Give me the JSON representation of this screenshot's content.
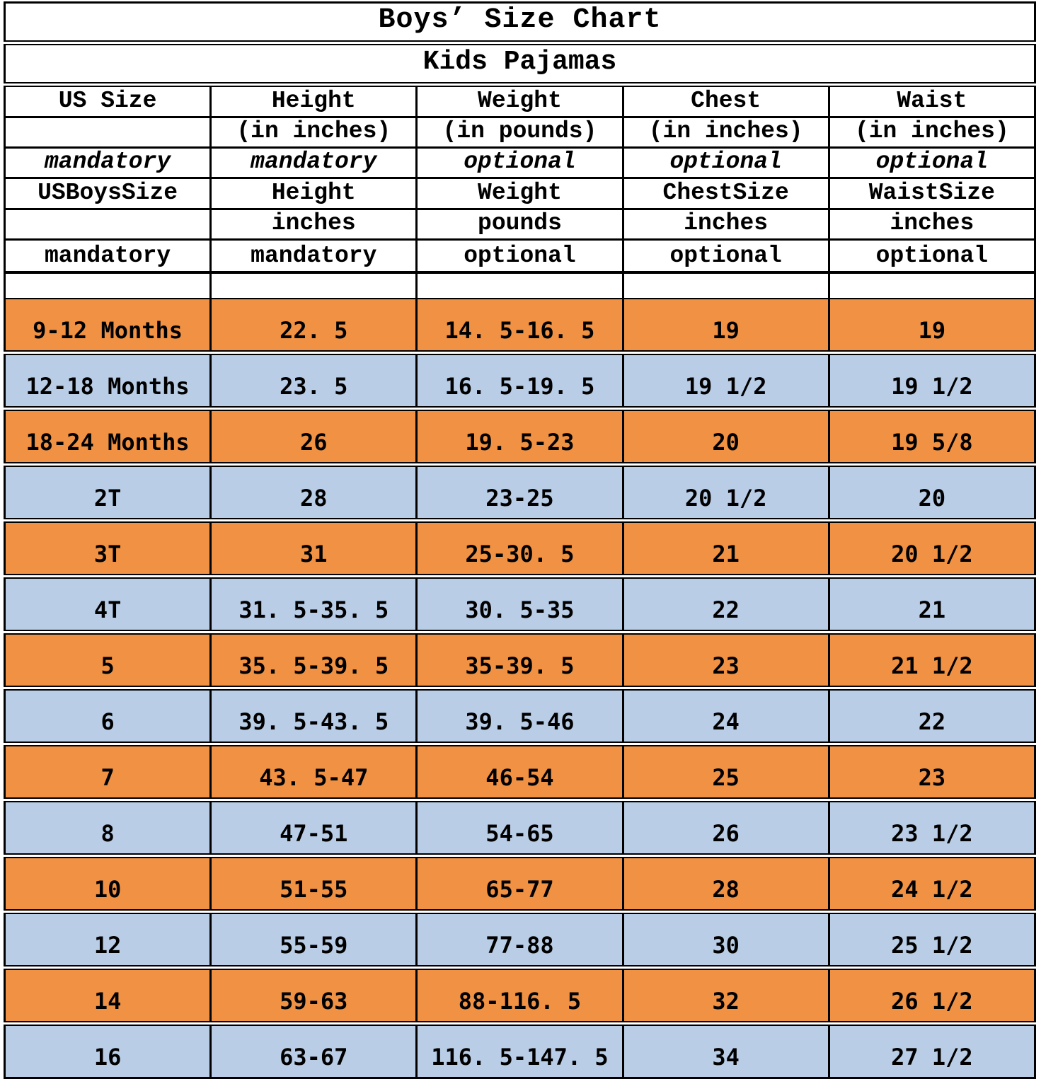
{
  "title": "Boys’ Size Chart",
  "subtitle": "Kids Pajamas",
  "colors": {
    "orange": "#F09143",
    "blue": "#B9CDE6",
    "border": "#000000",
    "paper": "#FFFFFF"
  },
  "header_rows": [
    {
      "cells": [
        "US Size",
        "Height",
        "Weight",
        "Chest",
        "Waist"
      ]
    },
    {
      "cells": [
        "",
        "(in inches)",
        "(in pounds)",
        "(in inches)",
        "(in inches)"
      ]
    },
    {
      "cells": [
        "mandatory",
        "mandatory",
        "optional",
        "optional",
        "optional"
      ]
    },
    {
      "cells": [
        "USBoysSize",
        "Height",
        "Weight",
        "ChestSize",
        "WaistSize"
      ]
    },
    {
      "cells": [
        "",
        "inches",
        "pounds",
        "inches",
        "inches"
      ]
    },
    {
      "cells": [
        "mandatory",
        "mandatory",
        "optional",
        "optional",
        "optional"
      ]
    }
  ],
  "rows": [
    {
      "us_size": "9-12 Months",
      "height": "22. 5",
      "weight": "14. 5-16. 5",
      "chest": "19",
      "waist": "19"
    },
    {
      "us_size": "12-18 Months",
      "height": "23. 5",
      "weight": "16. 5-19. 5",
      "chest": "19 1/2",
      "waist": "19 1/2"
    },
    {
      "us_size": "18-24 Months",
      "height": "26",
      "weight": "19. 5-23",
      "chest": "20",
      "waist": "19 5/8"
    },
    {
      "us_size": "2T",
      "height": "28",
      "weight": "23-25",
      "chest": "20 1/2",
      "waist": "20"
    },
    {
      "us_size": "3T",
      "height": "31",
      "weight": "25-30. 5",
      "chest": "21",
      "waist": "20 1/2"
    },
    {
      "us_size": "4T",
      "height": "31. 5-35. 5",
      "weight": "30. 5-35",
      "chest": "22",
      "waist": "21"
    },
    {
      "us_size": "5",
      "height": "35. 5-39. 5",
      "weight": "35-39. 5",
      "chest": "23",
      "waist": "21 1/2"
    },
    {
      "us_size": "6",
      "height": "39. 5-43. 5",
      "weight": "39. 5-46",
      "chest": "24",
      "waist": "22"
    },
    {
      "us_size": "7",
      "height": "43. 5-47",
      "weight": "46-54",
      "chest": "25",
      "waist": "23"
    },
    {
      "us_size": "8",
      "height": "47-51",
      "weight": "54-65",
      "chest": "26",
      "waist": "23 1/2"
    },
    {
      "us_size": "10",
      "height": "51-55",
      "weight": "65-77",
      "chest": "28",
      "waist": "24 1/2"
    },
    {
      "us_size": "12",
      "height": "55-59",
      "weight": "77-88",
      "chest": "30",
      "waist": "25 1/2"
    },
    {
      "us_size": "14",
      "height": "59-63",
      "weight": "88-116. 5",
      "chest": "32",
      "waist": "26 1/2"
    },
    {
      "us_size": "16",
      "height": "63-67",
      "weight": "116. 5-147. 5",
      "chest": "34",
      "waist": "27 1/2"
    }
  ],
  "chart_data": {
    "type": "table",
    "title": "Boys' Size Chart",
    "subtitle": "Kids Pajamas",
    "columns": [
      "US Size (mandatory)",
      "Height in inches (mandatory)",
      "Weight in pounds (optional)",
      "Chest in inches (optional)",
      "Waist in inches (optional)"
    ],
    "rows": [
      [
        "9-12 Months",
        "22.5",
        "14.5-16.5",
        "19",
        "19"
      ],
      [
        "12-18 Months",
        "23.5",
        "16.5-19.5",
        "19 1/2",
        "19 1/2"
      ],
      [
        "18-24 Months",
        "26",
        "19.5-23",
        "20",
        "19 5/8"
      ],
      [
        "2T",
        "28",
        "23-25",
        "20 1/2",
        "20"
      ],
      [
        "3T",
        "31",
        "25-30.5",
        "21",
        "20 1/2"
      ],
      [
        "4T",
        "31.5-35.5",
        "30.5-35",
        "22",
        "21"
      ],
      [
        "5",
        "35.5-39.5",
        "35-39.5",
        "23",
        "21 1/2"
      ],
      [
        "6",
        "39.5-43.5",
        "39.5-46",
        "24",
        "22"
      ],
      [
        "7",
        "43.5-47",
        "46-54",
        "25",
        "23"
      ],
      [
        "8",
        "47-51",
        "54-65",
        "26",
        "23 1/2"
      ],
      [
        "10",
        "51-55",
        "65-77",
        "28",
        "24 1/2"
      ],
      [
        "12",
        "55-59",
        "77-88",
        "30",
        "25 1/2"
      ],
      [
        "14",
        "59-63",
        "88-116.5",
        "32",
        "26 1/2"
      ],
      [
        "16",
        "63-67",
        "116.5-147.5",
        "34",
        "27 1/2"
      ]
    ],
    "layout_hints": {
      "row_banding": [
        "orange",
        "blue"
      ],
      "grid": true,
      "text_align": "center"
    }
  }
}
